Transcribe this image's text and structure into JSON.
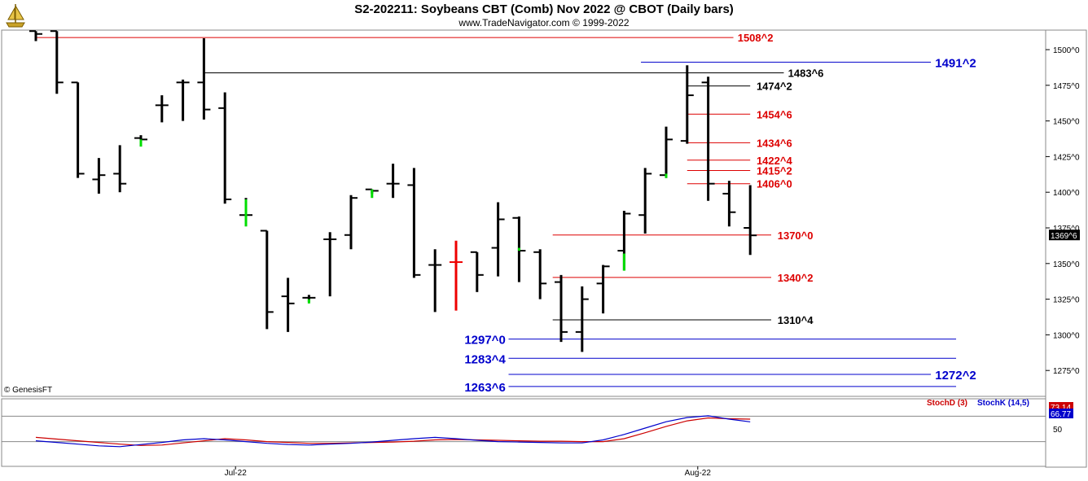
{
  "header": {
    "title": "S2-202211:  Soybeans CBT (Comb) Nov 2022 @ CBOT  (Daily bars)",
    "subtitle": "www.TradeNavigator.com © 1999-2022",
    "watermark": "© GenesisFT"
  },
  "colors": {
    "up_tick": "#00dd00",
    "down_bar": "#ee0000",
    "bar": "#000000",
    "red_line": "#dd0000",
    "blue_line": "#0000cc",
    "black_line": "#000000",
    "stoch_d": "#cc0000",
    "stoch_k": "#0000cc"
  },
  "chart_data": [
    {
      "type": "ohlc",
      "title": "Soybeans CBT (Comb) Nov 2022 @ CBOT (Daily bars)",
      "price_axis": {
        "ylim": [
          1260,
          1515
        ],
        "ticks": [
          {
            "value": 1500,
            "label": "1500^0"
          },
          {
            "value": 1475,
            "label": "1475^0"
          },
          {
            "value": 1450,
            "label": "1450^0"
          },
          {
            "value": 1425,
            "label": "1425^0"
          },
          {
            "value": 1400,
            "label": "1400^0"
          },
          {
            "value": 1375,
            "label": "1375^0"
          },
          {
            "value": 1350,
            "label": "1350^0"
          },
          {
            "value": 1325,
            "label": "1325^0"
          },
          {
            "value": 1300,
            "label": "1300^0"
          },
          {
            "value": 1275,
            "label": "1275^0"
          }
        ],
        "last_price_label": "1369^6",
        "last_price": 1369.75
      },
      "x_labels": [
        {
          "index": 9,
          "label": "Jul-22"
        },
        {
          "index": 31,
          "label": "Aug-22"
        }
      ],
      "bars": [
        {
          "i": 0,
          "o": 1513,
          "h": 1513,
          "l": 1506,
          "c": 1511
        },
        {
          "i": 1,
          "o": 1513,
          "h": 1513,
          "l": 1469,
          "c": 1477
        },
        {
          "i": 2,
          "o": 1477,
          "h": 1477,
          "l": 1410,
          "c": 1413
        },
        {
          "i": 3,
          "o": 1409,
          "h": 1424,
          "l": 1399,
          "c": 1412
        },
        {
          "i": 4,
          "o": 1413,
          "h": 1433,
          "l": 1400,
          "c": 1406
        },
        {
          "i": 5,
          "o": 1438,
          "h": 1440,
          "l": 1433,
          "c": 1437
        },
        {
          "i": 6,
          "o": 1461,
          "h": 1468,
          "l": 1449,
          "c": 1461
        },
        {
          "i": 7,
          "o": 1477,
          "h": 1479,
          "l": 1450,
          "c": 1477
        },
        {
          "i": 8,
          "o": 1477,
          "h": 1508,
          "l": 1451,
          "c": 1458
        },
        {
          "i": 9,
          "o": 1459,
          "h": 1470,
          "l": 1392,
          "c": 1395
        },
        {
          "i": 10,
          "o": 1384,
          "h": 1396,
          "l": 1383,
          "c": 1384
        },
        {
          "i": 11,
          "o": 1373,
          "h": 1373,
          "l": 1304,
          "c": 1316
        },
        {
          "i": 12,
          "o": 1327,
          "h": 1340,
          "l": 1302,
          "c": 1322
        },
        {
          "i": 13,
          "o": 1326,
          "h": 1328,
          "l": 1323,
          "c": 1326
        },
        {
          "i": 14,
          "o": 1367,
          "h": 1372,
          "l": 1327,
          "c": 1367
        },
        {
          "i": 15,
          "o": 1370,
          "h": 1398,
          "l": 1360,
          "c": 1396
        },
        {
          "i": 16,
          "o": 1402,
          "h": 1402,
          "l": 1399,
          "c": 1401
        },
        {
          "i": 17,
          "o": 1406,
          "h": 1420,
          "l": 1396,
          "c": 1406
        },
        {
          "i": 18,
          "o": 1405,
          "h": 1417,
          "l": 1340,
          "c": 1342
        },
        {
          "i": 19,
          "o": 1349,
          "h": 1360,
          "l": 1316,
          "c": 1349
        },
        {
          "i": 20,
          "o": 1351,
          "h": 1366,
          "l": 1317,
          "c": 1351
        },
        {
          "i": 21,
          "o": 1358,
          "h": 1358,
          "l": 1330,
          "c": 1342
        },
        {
          "i": 22,
          "o": 1361,
          "h": 1393,
          "l": 1341,
          "c": 1381
        },
        {
          "i": 23,
          "o": 1382,
          "h": 1383,
          "l": 1337,
          "c": 1359
        },
        {
          "i": 24,
          "o": 1358,
          "h": 1360,
          "l": 1325,
          "c": 1336
        },
        {
          "i": 25,
          "o": 1337,
          "h": 1342,
          "l": 1295,
          "c": 1302
        },
        {
          "i": 26,
          "o": 1302,
          "h": 1334,
          "l": 1288,
          "c": 1325
        },
        {
          "i": 27,
          "o": 1336,
          "h": 1349,
          "l": 1315,
          "c": 1348
        },
        {
          "i": 28,
          "o": 1359,
          "h": 1387,
          "l": 1345,
          "c": 1385
        },
        {
          "i": 29,
          "o": 1384,
          "h": 1417,
          "l": 1371,
          "c": 1413
        },
        {
          "i": 30,
          "o": 1412,
          "h": 1446,
          "l": 1410,
          "c": 1437
        },
        {
          "i": 31,
          "o": 1436,
          "h": 1489,
          "l": 1434,
          "c": 1468
        },
        {
          "i": 32,
          "o": 1477,
          "h": 1481,
          "l": 1394,
          "c": 1406
        },
        {
          "i": 33,
          "o": 1399,
          "h": 1408,
          "l": 1376,
          "c": 1386
        },
        {
          "i": 34,
          "o": 1375,
          "h": 1405,
          "l": 1356,
          "c": 1369.75
        }
      ],
      "up_ticks": [
        {
          "i": 5,
          "from": 1432,
          "to": 1437
        },
        {
          "i": 10,
          "from": 1376,
          "to": 1395
        },
        {
          "i": 13,
          "from": 1322,
          "to": 1325
        },
        {
          "i": 16,
          "from": 1396,
          "to": 1402
        },
        {
          "i": 23,
          "from": 1359,
          "to": 1361
        },
        {
          "i": 28,
          "from": 1345,
          "to": 1357
        },
        {
          "i": 30,
          "from": 1410,
          "to": 1413
        }
      ],
      "red_bar_index": 20,
      "levels": [
        {
          "value": 1508.5,
          "label": "1508^2",
          "color": "red",
          "x0": 0,
          "x1": 33.2,
          "label_at": 33.4
        },
        {
          "value": 1491.25,
          "label": "1491^2",
          "color": "blue",
          "x0": 28.8,
          "x1": 42.6,
          "label_at": 42.8
        },
        {
          "value": 1483.75,
          "label": "1483^6",
          "color": "black",
          "x0": 8.0,
          "x1": 35.6,
          "label_at": 35.8
        },
        {
          "value": 1474.5,
          "label": "1474^2",
          "color": "black",
          "x0": 31.0,
          "x1": 34.0,
          "label_at": 34.3
        },
        {
          "value": 1454.75,
          "label": "1454^6",
          "color": "red",
          "x0": 31.0,
          "x1": 34.0,
          "label_at": 34.3
        },
        {
          "value": 1434.75,
          "label": "1434^6",
          "color": "red",
          "x0": 31.0,
          "x1": 34.0,
          "label_at": 34.3
        },
        {
          "value": 1422.5,
          "label": "1422^4",
          "color": "red",
          "x0": 31.0,
          "x1": 34.0,
          "label_at": 34.3
        },
        {
          "value": 1415.25,
          "label": "1415^2",
          "color": "red",
          "x0": 31.0,
          "x1": 34.0,
          "label_at": 34.3
        },
        {
          "value": 1406.0,
          "label": "1406^0",
          "color": "red",
          "x0": 31.0,
          "x1": 34.0,
          "label_at": 34.3
        },
        {
          "value": 1370.0,
          "label": "1370^0",
          "color": "red",
          "x0": 24.6,
          "x1": 35.0,
          "label_at": 35.3
        },
        {
          "value": 1340.25,
          "label": "1340^2",
          "color": "red",
          "x0": 24.6,
          "x1": 35.0,
          "label_at": 35.3
        },
        {
          "value": 1310.5,
          "label": "1310^4",
          "color": "black",
          "x0": 24.6,
          "x1": 35.0,
          "label_at": 35.3
        },
        {
          "value": 1297.0,
          "label": "1297^0",
          "color": "blue",
          "x0": 22.5,
          "x1": 43.8,
          "label_left": 20.4
        },
        {
          "value": 1283.5,
          "label": "1283^4",
          "color": "blue",
          "x0": 22.5,
          "x1": 43.8,
          "label_left": 20.4
        },
        {
          "value": 1272.25,
          "label": "1272^2",
          "color": "blue",
          "x0": 22.5,
          "x1": 42.6,
          "label_at": 42.8
        },
        {
          "value": 1263.75,
          "label": "1263^6",
          "color": "blue",
          "x0": 22.5,
          "x1": 43.8,
          "label_left": 20.4
        }
      ]
    },
    {
      "type": "line",
      "title": "Stochastics",
      "ylim": [
        0,
        100
      ],
      "tick": {
        "value": 50,
        "label": "50"
      },
      "reference_lines": [
        20,
        80
      ],
      "series": [
        {
          "name": "StochD (3)",
          "last_label": "73.14",
          "values": [
            30,
            26,
            22,
            18,
            14,
            11,
            12,
            17,
            22,
            27,
            24,
            20,
            18,
            16,
            16,
            17,
            18,
            19,
            21,
            24,
            25,
            24,
            23,
            22,
            21,
            21,
            20,
            20,
            27,
            41,
            56,
            69,
            76,
            74,
            73.14
          ]
        },
        {
          "name": "StochK (14,5)",
          "last_label": "66.77",
          "values": [
            22,
            18,
            14,
            10,
            8,
            13,
            18,
            24,
            27,
            24,
            20,
            16,
            13,
            12,
            14,
            16,
            19,
            23,
            27,
            30,
            27,
            23,
            20,
            19,
            18,
            17,
            17,
            24,
            37,
            52,
            67,
            77,
            81,
            73,
            66.77
          ]
        }
      ]
    }
  ]
}
